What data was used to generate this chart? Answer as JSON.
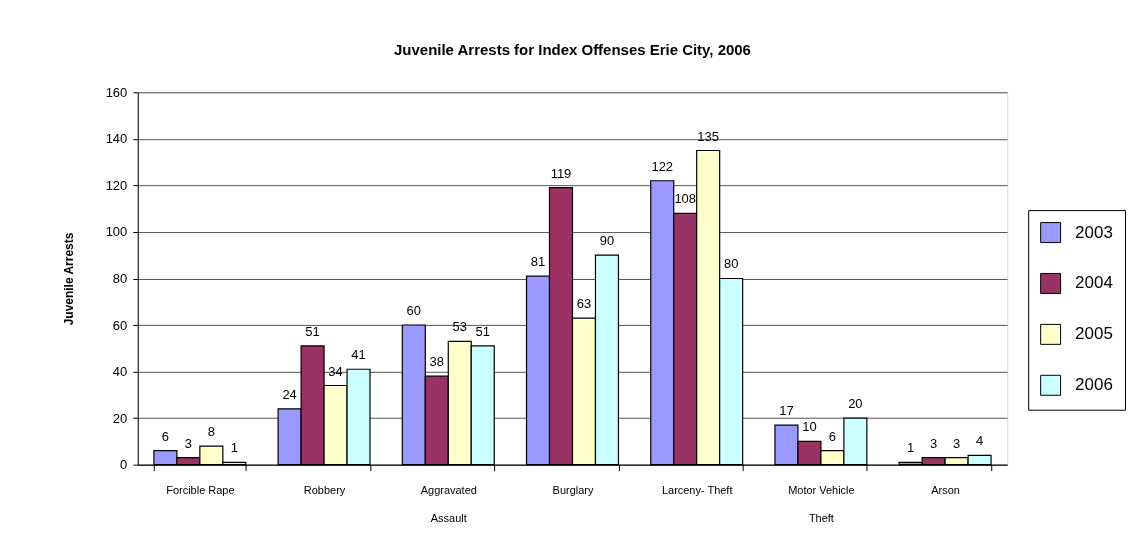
{
  "chart_data": {
    "type": "bar",
    "title": "Juvenile Arrests for Index Offenses Erie City, 2006",
    "ylabel": "Juvenile Arrests",
    "categories": [
      "Forcible Rape",
      "Robbery",
      "Aggravated Assault",
      "Burglary",
      "Larceny- Theft",
      "Motor Vehicle Theft",
      "Arson"
    ],
    "series": [
      {
        "name": "2003",
        "color": "#9999ff",
        "values": [
          6,
          24,
          60,
          81,
          122,
          17,
          1
        ]
      },
      {
        "name": "2004",
        "color": "#993366",
        "values": [
          3,
          51,
          38,
          119,
          108,
          10,
          3
        ]
      },
      {
        "name": "2005",
        "color": "#ffffcc",
        "values": [
          8,
          34,
          53,
          63,
          135,
          6,
          3
        ]
      },
      {
        "name": "2006",
        "color": "#ccffff",
        "values": [
          1,
          41,
          51,
          90,
          80,
          20,
          4
        ]
      }
    ],
    "ylim": [
      0,
      160
    ],
    "yticks": [
      0,
      20,
      40,
      60,
      80,
      100,
      120,
      140,
      160
    ],
    "grid": "y",
    "data_labels": true,
    "legend": "right"
  }
}
